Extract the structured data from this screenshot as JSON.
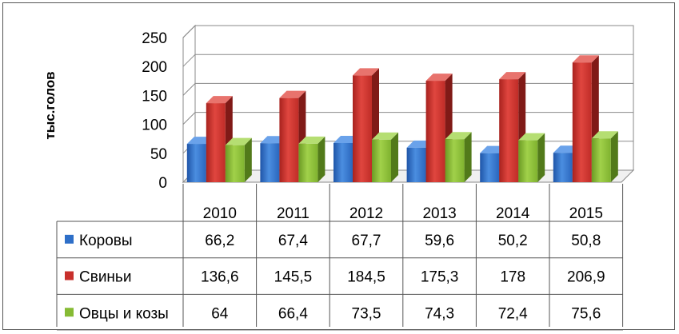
{
  "chart_data": {
    "type": "bar",
    "title": "",
    "xlabel": "",
    "ylabel": "тыс.голов",
    "ylim": [
      0,
      250
    ],
    "yticks": [
      0,
      50,
      100,
      150,
      200,
      250
    ],
    "ytick_labels": [
      "0",
      "50",
      "100",
      "150",
      "200",
      "250"
    ],
    "grid": true,
    "legend": "data table (left)",
    "categories": [
      "2010",
      "2011",
      "2012",
      "2013",
      "2014",
      "2015"
    ],
    "series": [
      {
        "name": "Коровы",
        "color": "#2e6fc8",
        "values": [
          66.2,
          67.4,
          67.7,
          59.6,
          50.2,
          50.8
        ],
        "value_labels": [
          "66,2",
          "67,4",
          "67,7",
          "59,6",
          "50,2",
          "50,8"
        ]
      },
      {
        "name": "Свиньи",
        "color": "#c8302c",
        "values": [
          136.6,
          145.5,
          184.5,
          175.3,
          178,
          206.9
        ],
        "value_labels": [
          "136,6",
          "145,5",
          "184,5",
          "175,3",
          "178",
          "206,9"
        ]
      },
      {
        "name": "Овцы и козы",
        "color": "#86bb34",
        "values": [
          64,
          66.4,
          73.5,
          74.3,
          72.4,
          75.6
        ],
        "value_labels": [
          "64",
          "66,4",
          "73,5",
          "74,3",
          "72,4",
          "75,6"
        ]
      }
    ]
  }
}
